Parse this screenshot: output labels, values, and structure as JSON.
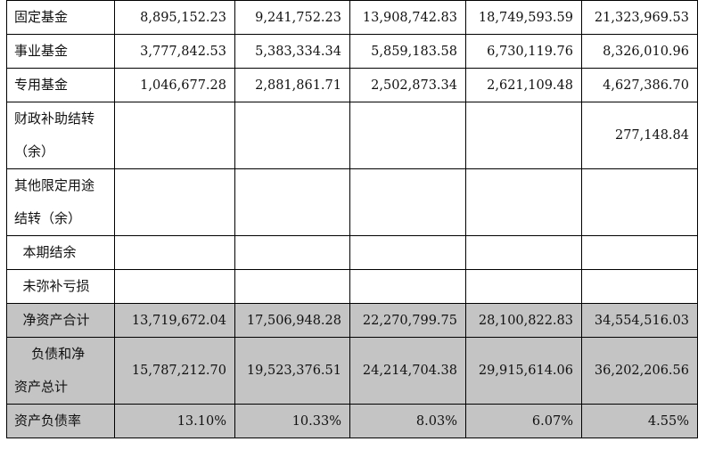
{
  "rows": [
    {
      "label": "固定基金",
      "lines": [
        "固定基金"
      ],
      "values": [
        "8,895,152.23",
        "9,241,752.23",
        "13,908,742.83",
        "18,749,593.59",
        "21,323,969.53"
      ],
      "shaded": false,
      "tall": false
    },
    {
      "label": "事业基金",
      "lines": [
        "事业基金"
      ],
      "values": [
        "3,777,842.53",
        "5,383,334.34",
        "5,859,183.58",
        "6,730,119.76",
        "8,326,010.96"
      ],
      "shaded": false,
      "tall": false
    },
    {
      "label": "专用基金",
      "lines": [
        "专用基金"
      ],
      "values": [
        "1,046,677.28",
        "2,881,861.71",
        "2,502,873.34",
        "2,621,109.48",
        "4,627,386.70"
      ],
      "shaded": false,
      "tall": false
    },
    {
      "label": "财政补助结转（余）",
      "lines": [
        "财政补助结转",
        "（余）"
      ],
      "values": [
        "",
        "",
        "",
        "",
        "277,148.84"
      ],
      "shaded": false,
      "tall": true
    },
    {
      "label": "其他限定用途结转（余）",
      "lines": [
        "其他限定用途",
        "结转（余）"
      ],
      "values": [
        "",
        "",
        "",
        "",
        ""
      ],
      "shaded": false,
      "tall": true
    },
    {
      "label": "本期结余",
      "lines": [
        "  本期结余"
      ],
      "values": [
        "",
        "",
        "",
        "",
        ""
      ],
      "shaded": false,
      "tall": false
    },
    {
      "label": "未弥补亏损",
      "lines": [
        "  未弥补亏损"
      ],
      "values": [
        "",
        "",
        "",
        "",
        ""
      ],
      "shaded": false,
      "tall": false
    },
    {
      "label": "净资产合计",
      "lines": [
        "  净资产合计"
      ],
      "values": [
        "13,719,672.04",
        "17,506,948.28",
        "22,270,799.75",
        "28,100,822.83",
        "34,554,516.03"
      ],
      "shaded": true,
      "tall": false
    },
    {
      "label": "负债和净资产总计",
      "lines": [
        "    负债和净",
        "资产总计"
      ],
      "values": [
        "15,787,212.70",
        "19,523,376.51",
        "24,214,704.38",
        "29,915,614.06",
        "36,202,206.56"
      ],
      "shaded": true,
      "tall": true
    },
    {
      "label": "资产负债率",
      "lines": [
        "资产负债率"
      ],
      "values": [
        "13.10%",
        "10.33%",
        "8.03%",
        "6.07%",
        "4.55%"
      ],
      "shaded": true,
      "tall": false
    }
  ]
}
